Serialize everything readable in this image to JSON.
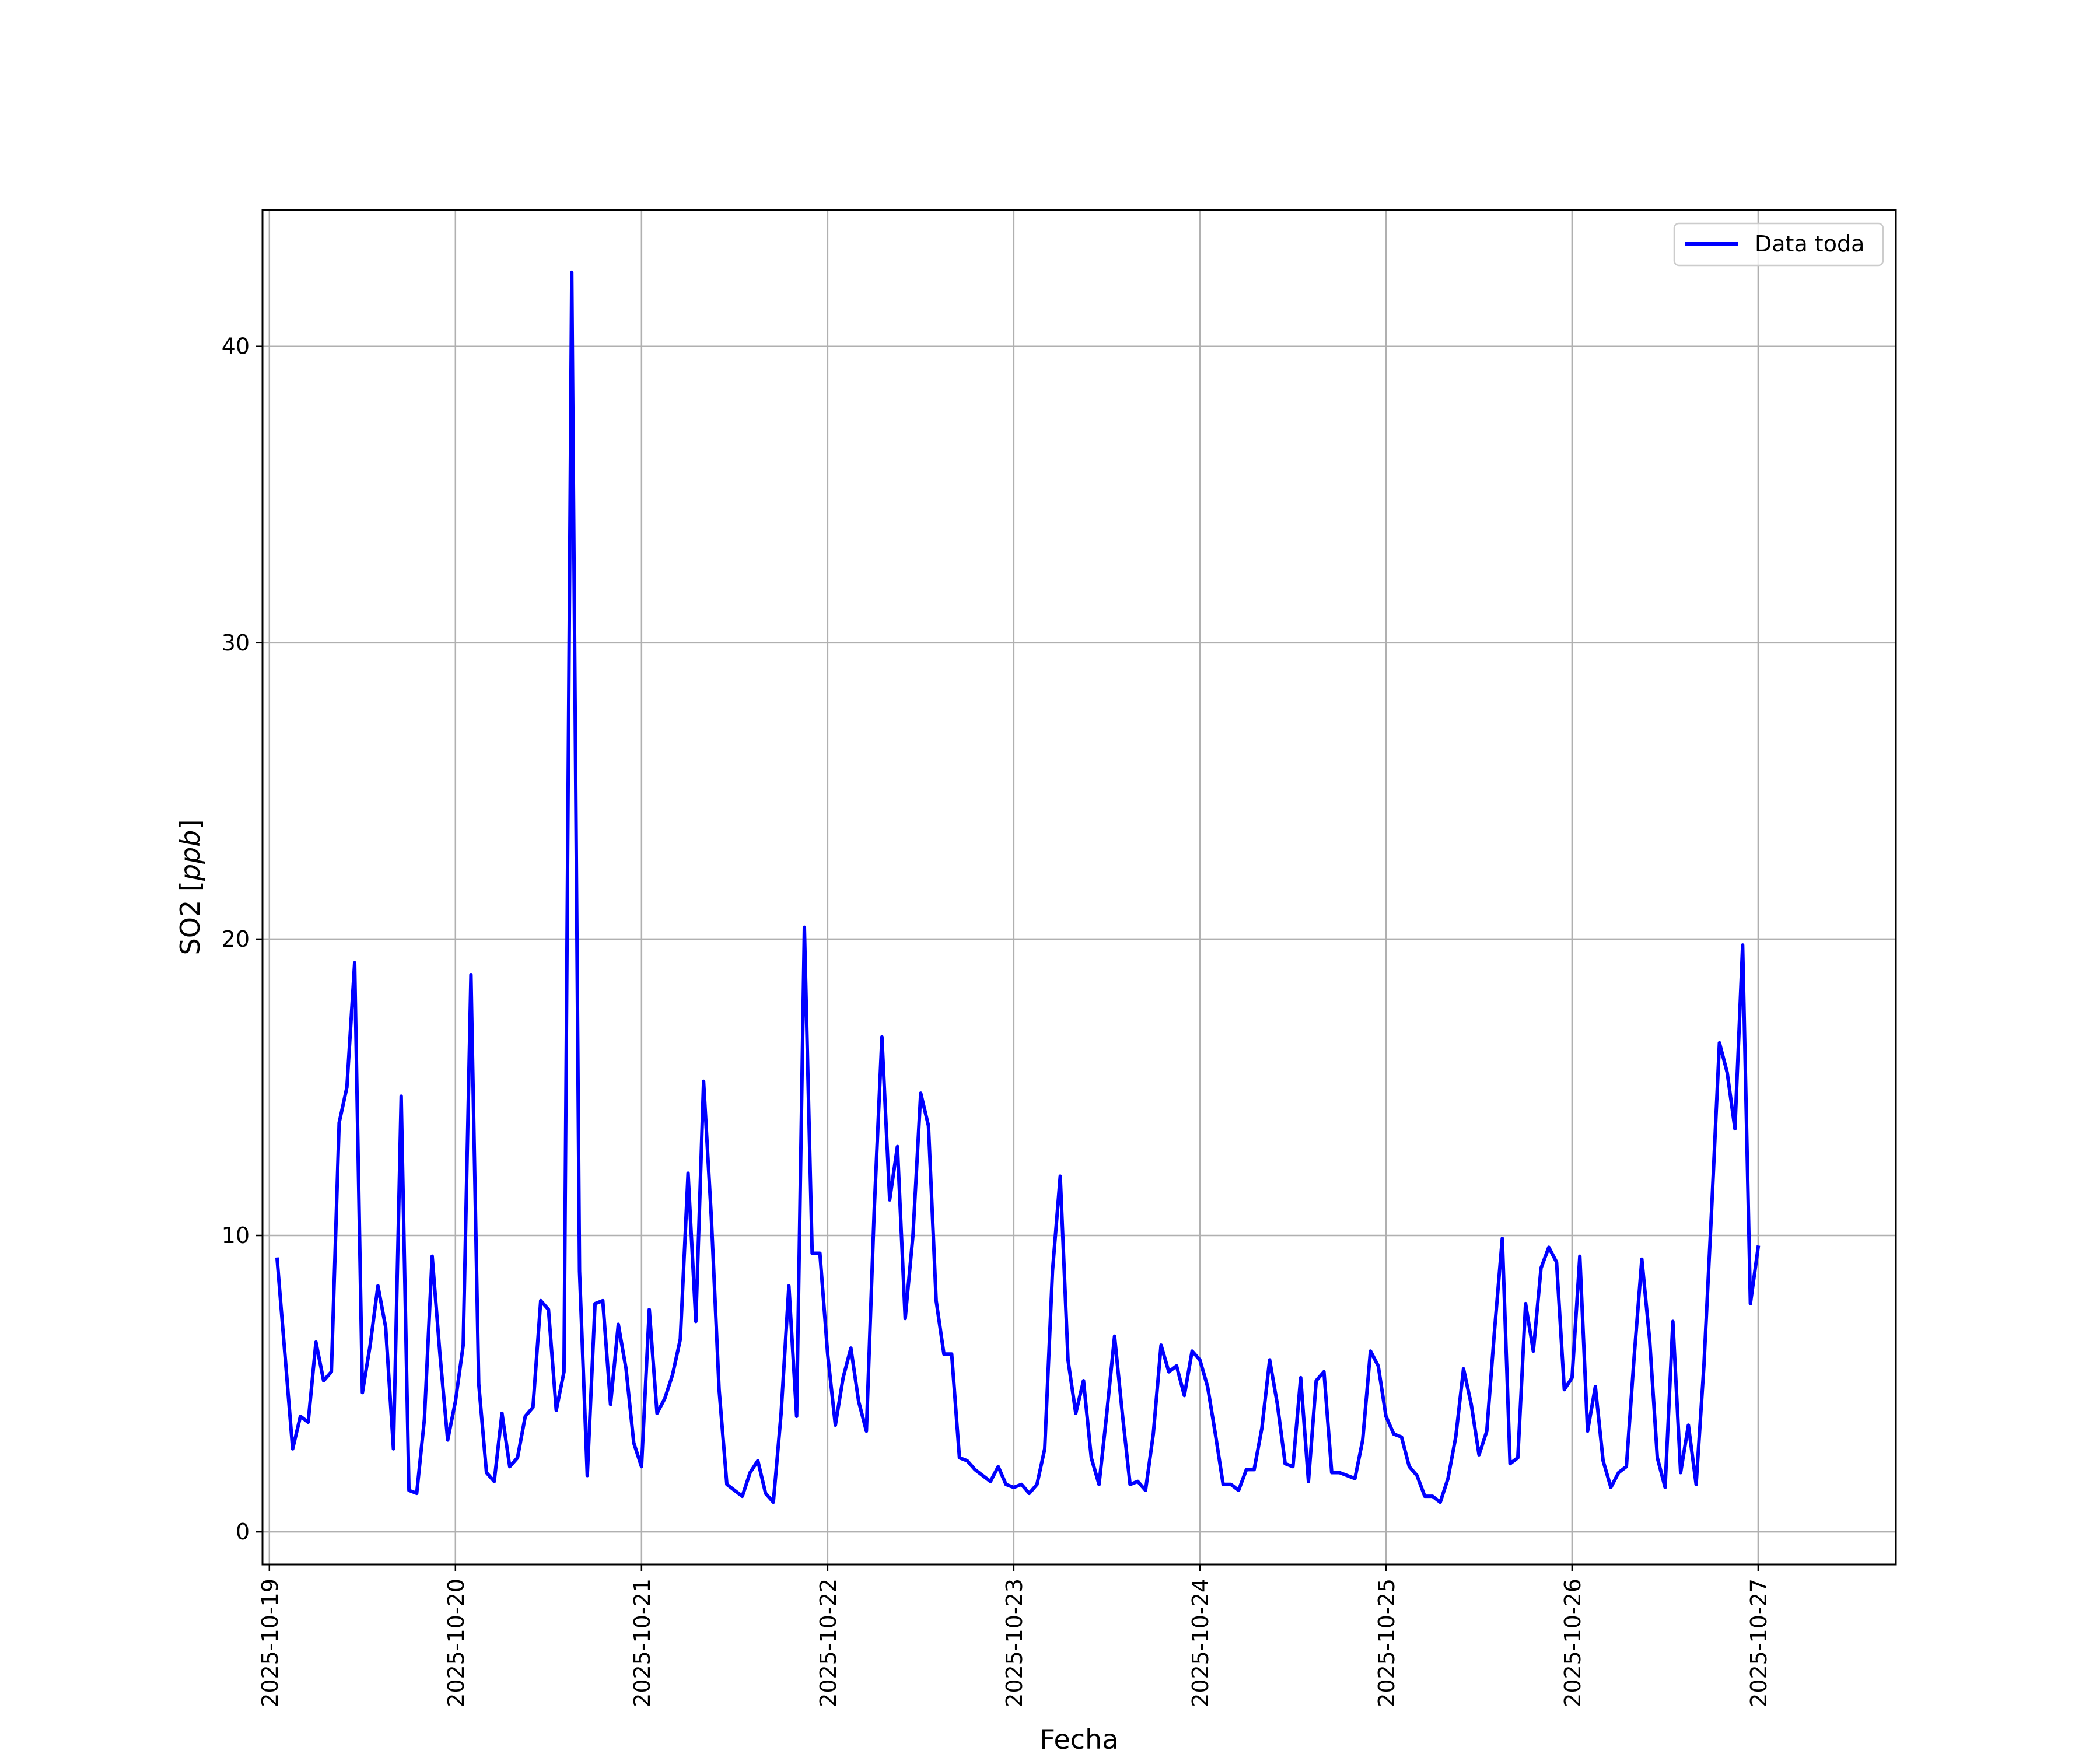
{
  "chart_data": {
    "type": "line",
    "xlabel": "Fecha",
    "ylabel": "SO2 [ppb]",
    "ylabel_main": "SO2 [",
    "ylabel_unit": "ppb",
    "ylabel_close": "]",
    "xlim": [
      -0.037,
      8.74
    ],
    "ylim": [
      -1.1,
      44.6
    ],
    "x_tick_labels": [
      "2025-10-19",
      "2025-10-20",
      "2025-10-21",
      "2025-10-22",
      "2025-10-23",
      "2025-10-24",
      "2025-10-25",
      "2025-10-26",
      "2025-10-27"
    ],
    "y_ticks": [
      0,
      10,
      20,
      30,
      40
    ],
    "y_tick_labels": [
      "0",
      "10",
      "20",
      "30",
      "40"
    ],
    "grid": true,
    "legend_position": "top-right",
    "colors": {
      "line": "#0000ff",
      "grid": "#b0b0b0",
      "frame": "#000000"
    },
    "series": [
      {
        "name": "Data toda",
        "x_start": "2025-10-19 01:00",
        "x_step_hours": 1,
        "values": [
          9.2,
          6.0,
          2.8,
          3.9,
          3.7,
          6.4,
          5.1,
          5.4,
          13.8,
          15.0,
          19.2,
          4.7,
          6.3,
          8.3,
          6.9,
          2.8,
          14.7,
          1.4,
          1.3,
          3.8,
          9.3,
          6.0,
          3.1,
          4.4,
          6.3,
          18.8,
          5.0,
          2.0,
          1.7,
          4.0,
          2.2,
          2.5,
          3.9,
          4.2,
          7.8,
          7.5,
          4.1,
          5.4,
          42.5,
          8.8,
          1.9,
          7.7,
          7.8,
          4.3,
          7.0,
          5.5,
          3.0,
          2.2,
          7.5,
          4.0,
          4.5,
          5.3,
          6.5,
          12.1,
          7.1,
          15.2,
          10.6,
          4.8,
          1.6,
          1.4,
          1.2,
          2.0,
          2.4,
          1.3,
          1.0,
          4.0,
          8.3,
          3.9,
          20.4,
          9.4,
          9.4,
          6.0,
          3.6,
          5.2,
          6.2,
          4.4,
          3.4,
          10.8,
          16.7,
          11.2,
          13.0,
          7.2,
          10.0,
          14.8,
          13.7,
          7.8,
          6.0,
          6.0,
          2.5,
          2.4,
          2.1,
          1.9,
          1.7,
          2.2,
          1.6,
          1.5,
          1.6,
          1.3,
          1.6,
          2.8,
          8.8,
          12.0,
          5.8,
          4.0,
          5.1,
          2.5,
          1.6,
          4.0,
          6.6,
          4.0,
          1.6,
          1.7,
          1.4,
          3.3,
          6.3,
          5.4,
          5.6,
          4.6,
          6.1,
          5.8,
          4.9,
          3.3,
          1.6,
          1.6,
          1.4,
          2.1,
          2.1,
          3.5,
          5.8,
          4.3,
          2.3,
          2.2,
          5.2,
          1.7,
          5.1,
          5.4,
          2.0,
          2.0,
          1.9,
          1.8,
          3.1,
          6.1,
          5.6,
          3.9,
          3.3,
          3.2,
          2.2,
          1.9,
          1.2,
          1.2,
          1.0,
          1.8,
          3.2,
          5.5,
          4.3,
          2.6,
          3.4,
          6.8,
          9.9,
          2.3,
          2.5,
          7.7,
          6.1,
          8.9,
          9.6,
          9.1,
          4.8,
          5.2,
          9.3,
          3.4,
          4.9,
          2.4,
          1.5,
          2.0,
          2.2,
          5.9,
          9.2,
          6.5,
          2.5,
          1.5,
          7.1,
          2.0,
          3.6,
          1.6,
          5.6,
          10.9,
          16.5,
          15.5,
          13.6,
          19.8,
          7.7,
          9.6
        ]
      }
    ]
  }
}
